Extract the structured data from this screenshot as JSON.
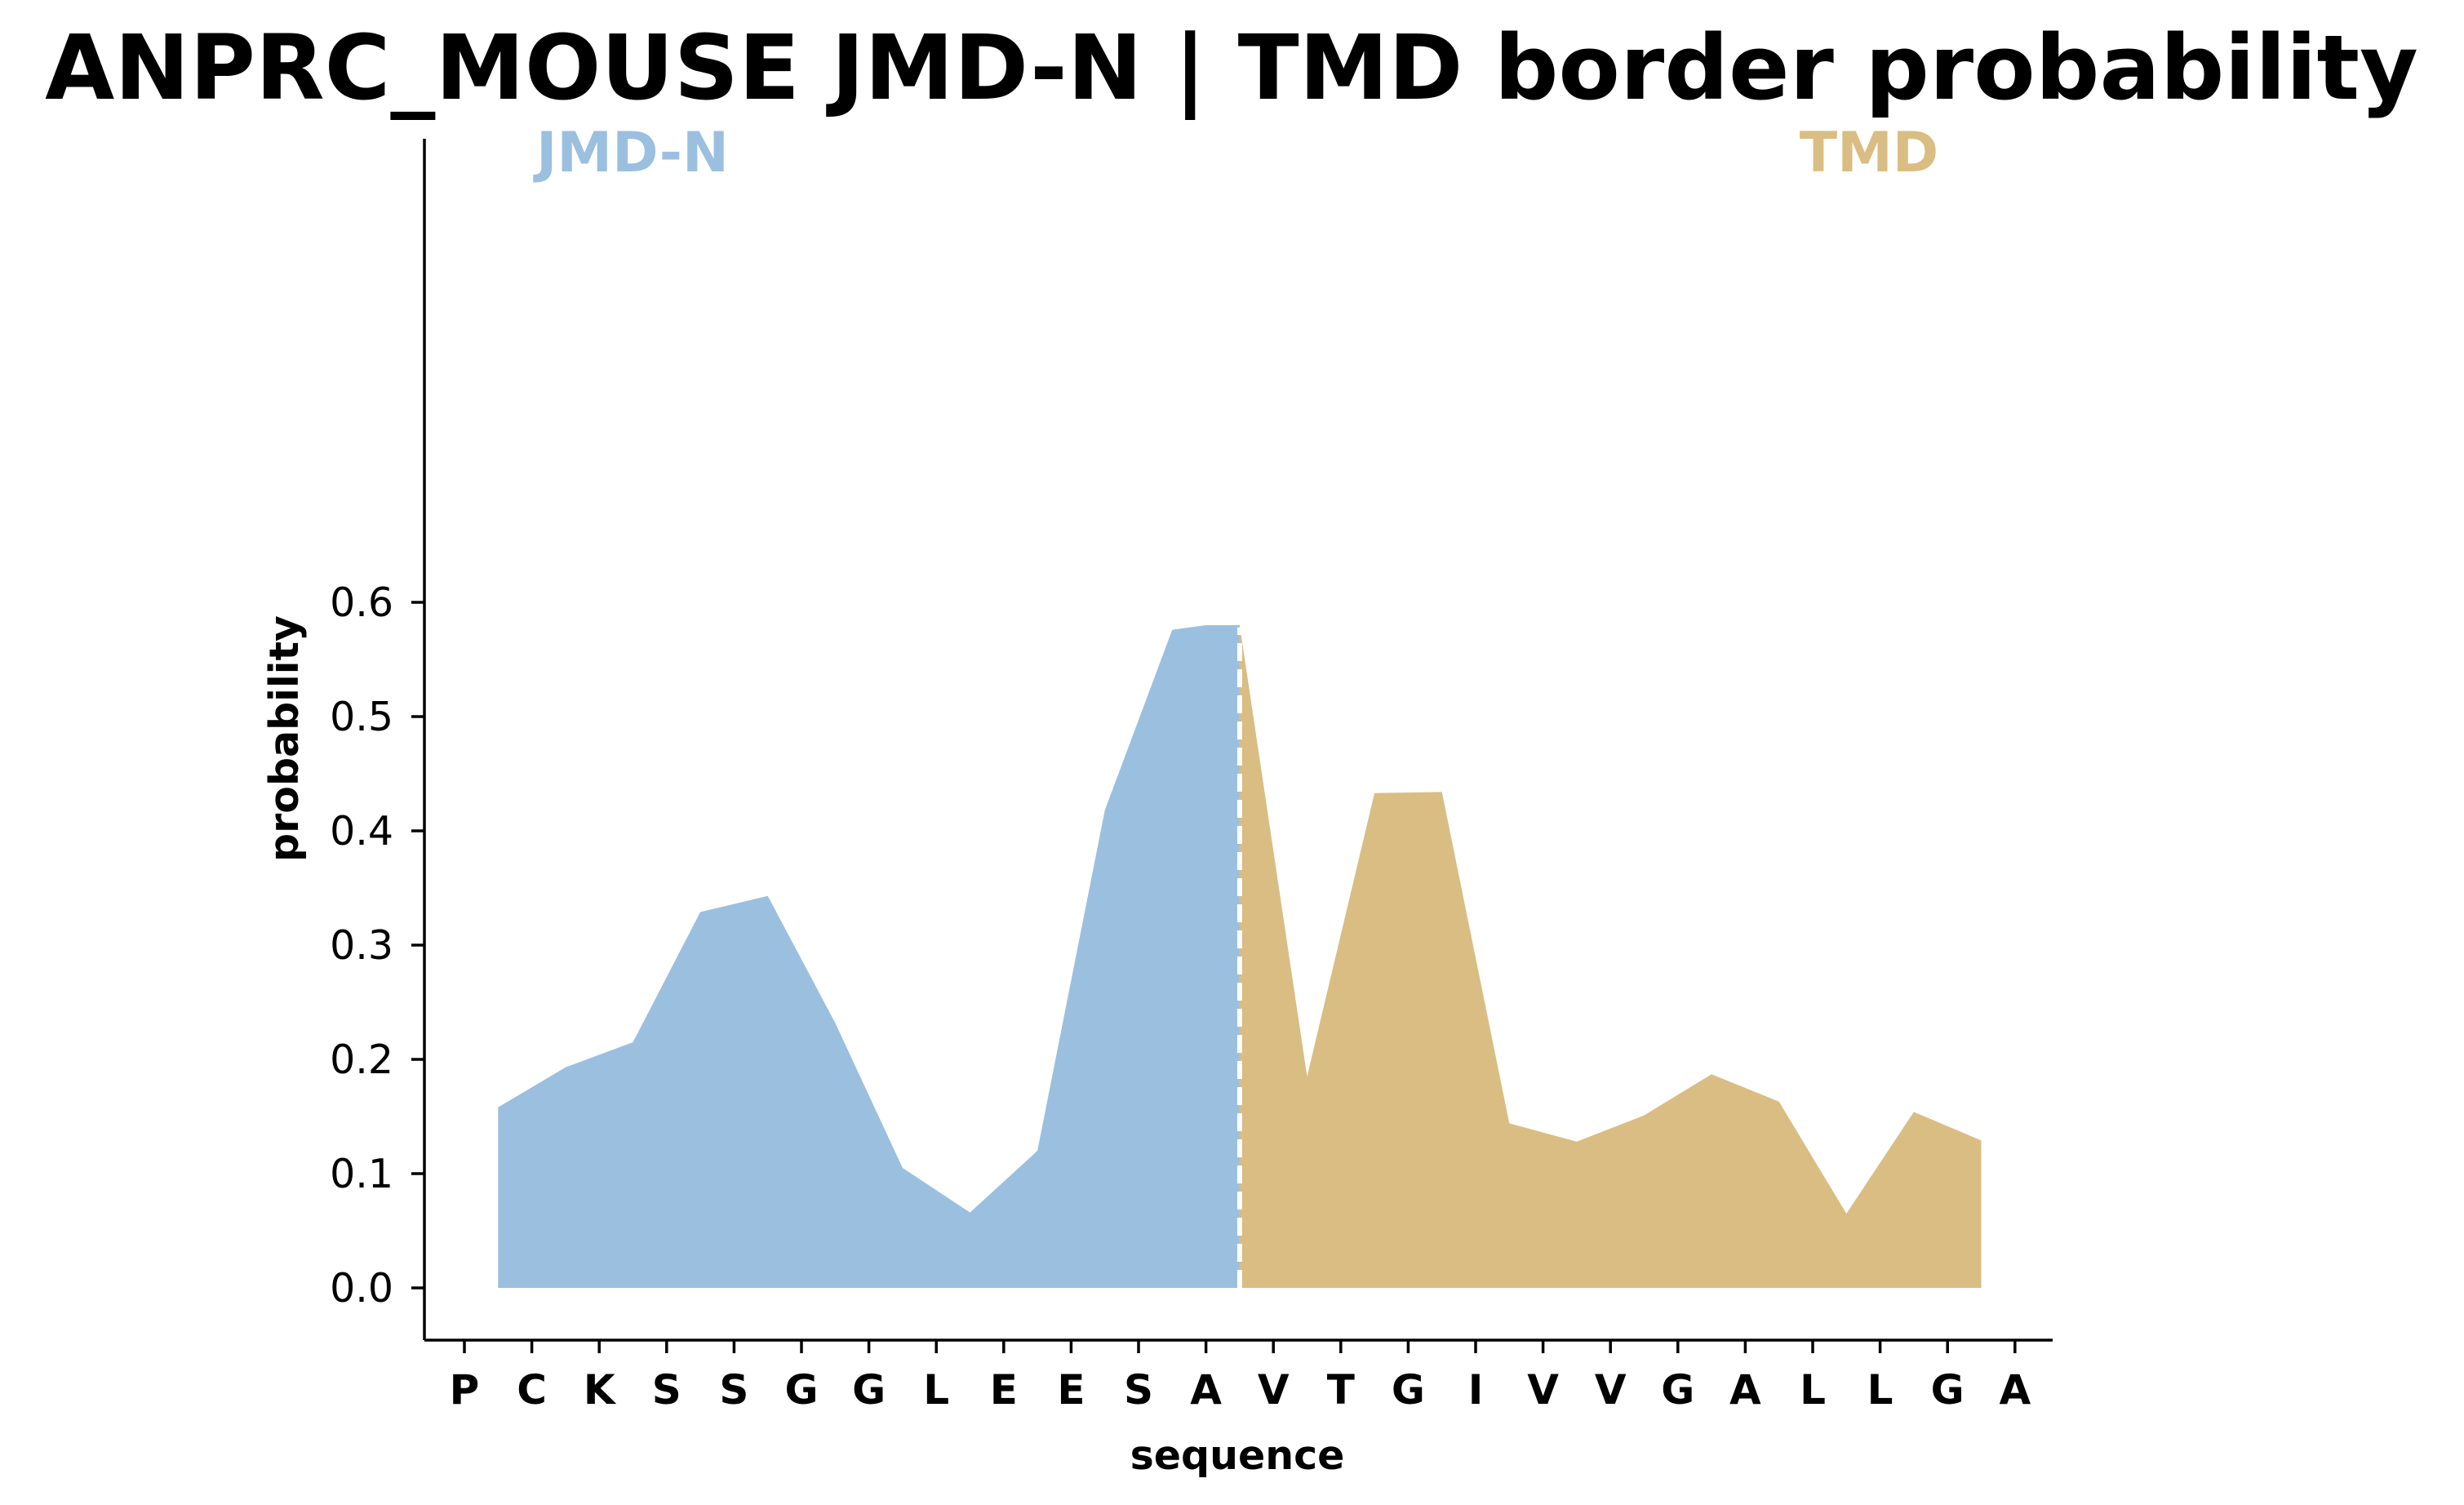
{
  "chart_data": {
    "type": "area",
    "title": "ANPRC_MOUSE JMD-N | TMD border probability",
    "xlabel": "sequence",
    "ylabel": "probability",
    "ylim": [
      -0.027,
      0.61
    ],
    "yticks": [
      "0.0",
      "0.1",
      "0.2",
      "0.3",
      "0.4",
      "0.5",
      "0.6"
    ],
    "grid": false,
    "categories": [
      "P",
      "C",
      "K",
      "S",
      "S",
      "G",
      "G",
      "L",
      "E",
      "E",
      "S",
      "A",
      "V",
      "T",
      "G",
      "I",
      "V",
      "V",
      "G",
      "A",
      "L",
      "L",
      "G",
      "A"
    ],
    "border_x": 11.5,
    "series": [
      {
        "name": "JMD-N",
        "color": "#9bbfdf",
        "x": [
          0.5,
          1.5,
          2.5,
          3.5,
          4.5,
          5.5,
          6.5,
          7.5,
          8.5,
          9.5,
          10.5,
          11.0,
          11.5
        ],
        "values": [
          0.158,
          0.193,
          0.215,
          0.329,
          0.343,
          0.232,
          0.105,
          0.066,
          0.12,
          0.418,
          0.576,
          0.58,
          0.58
        ]
      },
      {
        "name": "TMD",
        "color": "#d9bd82",
        "x": [
          11.5,
          12.5,
          13.5,
          14.5,
          15.5,
          16.5,
          17.5,
          18.5,
          19.5,
          20.5,
          21.5,
          22.5
        ],
        "values": [
          0.58,
          0.185,
          0.433,
          0.434,
          0.144,
          0.128,
          0.151,
          0.187,
          0.163,
          0.065,
          0.154,
          0.129
        ]
      }
    ],
    "annotations": [
      {
        "text": "JMD-N",
        "color": "#9bbfdf"
      },
      {
        "text": "TMD",
        "color": "#d9bd82"
      }
    ]
  }
}
